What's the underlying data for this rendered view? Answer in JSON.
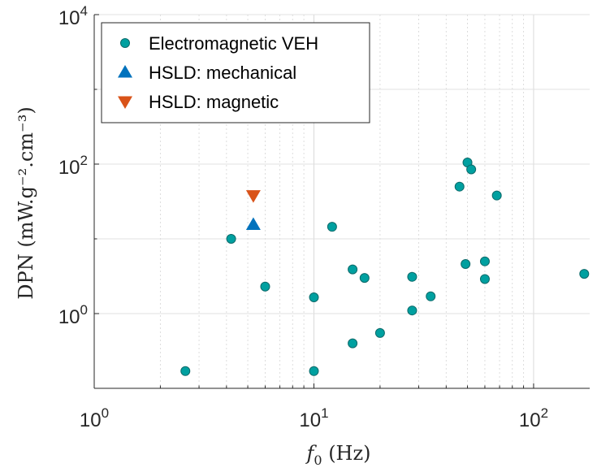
{
  "chart_data": {
    "type": "scatter",
    "xscale": "log",
    "yscale": "log",
    "xlim": [
      1,
      180
    ],
    "ylim": [
      0.1,
      10000
    ],
    "xticks": [
      {
        "base": "10",
        "exp": "0"
      },
      {
        "base": "10",
        "exp": "1"
      },
      {
        "base": "10",
        "exp": "2"
      }
    ],
    "yticks": [
      {
        "base": "10",
        "exp": "0"
      },
      {
        "base": "10",
        "exp": "2"
      },
      {
        "base": "10",
        "exp": "4"
      }
    ],
    "xlabel": {
      "italic": "f",
      "sub": "0",
      "rest": " (Hz)"
    },
    "ylabel": "DPN (mW.g⁻².cm⁻³)",
    "grid": true,
    "legend_position": "top-left",
    "series": [
      {
        "name": "Electromagnetic VEH",
        "marker": "circle",
        "color": "#00a0a0",
        "points": [
          {
            "x": 2.6,
            "y": 0.17
          },
          {
            "x": 4.2,
            "y": 10
          },
          {
            "x": 6,
            "y": 2.3
          },
          {
            "x": 10,
            "y": 0.17
          },
          {
            "x": 10,
            "y": 1.65
          },
          {
            "x": 12.1,
            "y": 14.5
          },
          {
            "x": 15,
            "y": 0.4
          },
          {
            "x": 15,
            "y": 3.9
          },
          {
            "x": 17,
            "y": 3
          },
          {
            "x": 20,
            "y": 0.55
          },
          {
            "x": 28,
            "y": 1.1
          },
          {
            "x": 28,
            "y": 3.1
          },
          {
            "x": 34,
            "y": 1.7
          },
          {
            "x": 46,
            "y": 50
          },
          {
            "x": 49,
            "y": 4.6
          },
          {
            "x": 50,
            "y": 105
          },
          {
            "x": 52,
            "y": 85
          },
          {
            "x": 60,
            "y": 5
          },
          {
            "x": 60,
            "y": 2.9
          },
          {
            "x": 68,
            "y": 38
          },
          {
            "x": 170,
            "y": 3.4
          }
        ]
      },
      {
        "name": "HSLD: mechanical",
        "marker": "triangle-up",
        "color": "#0072bd",
        "points": [
          {
            "x": 5.3,
            "y": 15.5
          }
        ]
      },
      {
        "name": "HSLD: magnetic",
        "marker": "triangle-down",
        "color": "#d95319",
        "points": [
          {
            "x": 5.3,
            "y": 38
          }
        ]
      }
    ]
  }
}
